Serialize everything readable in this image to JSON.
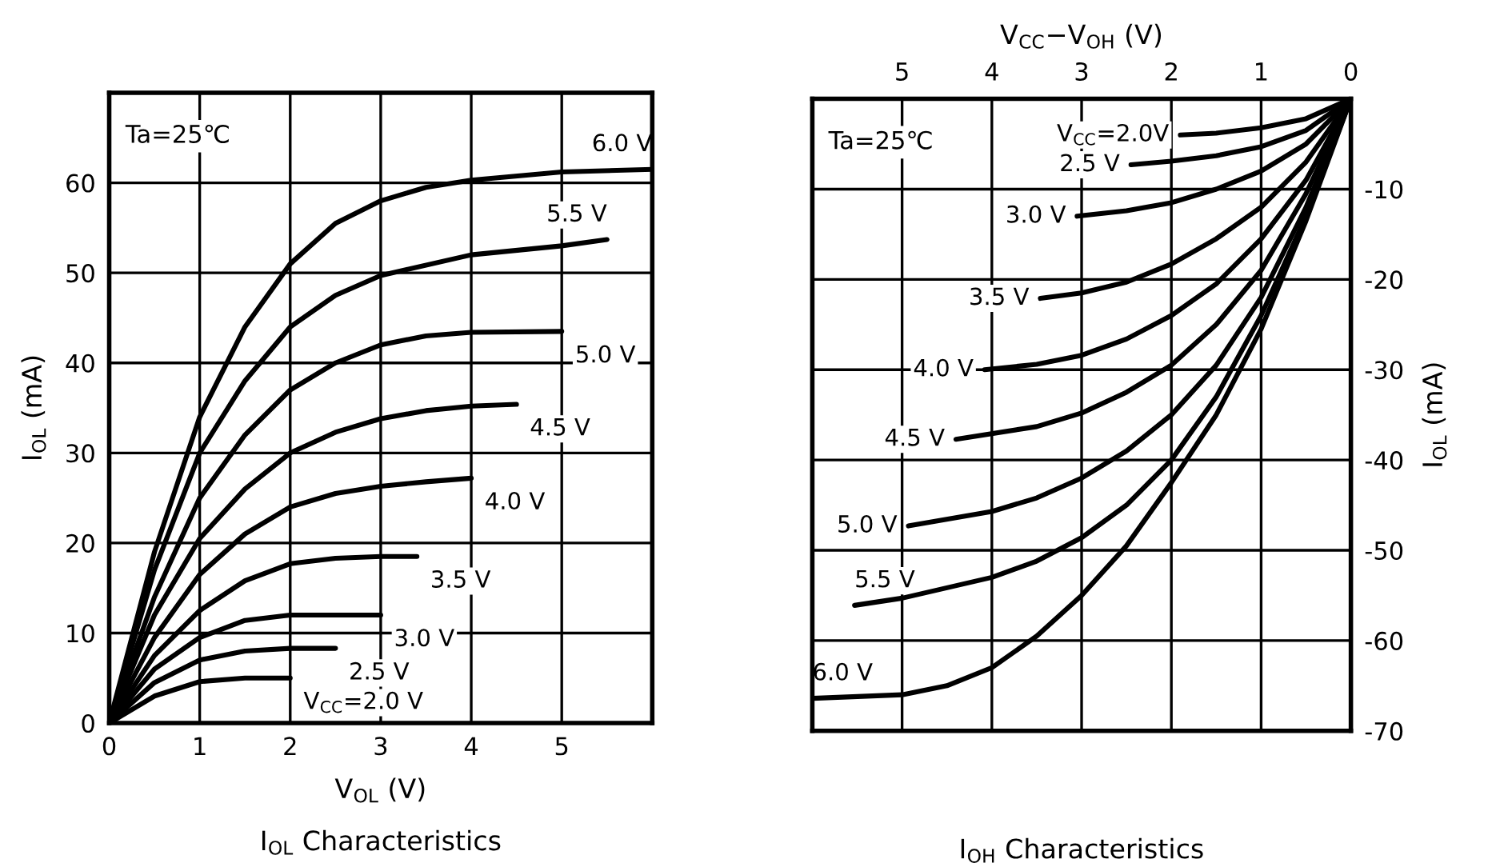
{
  "chart_data": [
    {
      "type": "line",
      "title": "I$_{OL}$ Characteristics",
      "xlabel": "V$_{OL}$ (V)",
      "ylabel": "I$_{OL}$ (mA)",
      "annotations": [
        "Ta=25℃"
      ],
      "xlim": [
        0,
        6
      ],
      "xticks": [
        0,
        1,
        2,
        3,
        4,
        5
      ],
      "ylim": [
        0,
        70
      ],
      "yticks": [
        0,
        10,
        20,
        30,
        40,
        50,
        60
      ],
      "grid": true,
      "legend": false,
      "marker": "none",
      "line_style": "solid",
      "series": [
        {
          "name": "6.0 V",
          "color": "#000000",
          "x": [
            0,
            0.5,
            1,
            1.5,
            2,
            2.5,
            3,
            3.5,
            4,
            5,
            6
          ],
          "values": [
            0,
            19,
            34,
            44,
            51,
            55.5,
            58,
            59.5,
            60.3,
            61.2,
            61.5
          ]
        },
        {
          "name": "5.5 V",
          "color": "#000000",
          "x": [
            0,
            0.5,
            1,
            1.5,
            2,
            2.5,
            3,
            4,
            5,
            5.5
          ],
          "values": [
            0,
            17,
            30,
            38,
            44,
            47.5,
            49.7,
            52,
            53,
            53.7
          ]
        },
        {
          "name": "5.0 V",
          "color": "#000000",
          "x": [
            0,
            0.5,
            1,
            1.5,
            2,
            2.5,
            3,
            3.5,
            4,
            5
          ],
          "values": [
            0,
            14,
            25,
            32,
            37,
            40,
            42,
            43,
            43.4,
            43.5
          ]
        },
        {
          "name": "4.5 V",
          "color": "#000000",
          "x": [
            0,
            0.5,
            1,
            1.5,
            2,
            2.5,
            3,
            3.5,
            4,
            4.5
          ],
          "values": [
            0,
            12,
            20.5,
            26,
            30,
            32.3,
            33.8,
            34.7,
            35.2,
            35.4
          ]
        },
        {
          "name": "4.0 V",
          "color": "#000000",
          "x": [
            0,
            0.5,
            1,
            1.5,
            2,
            2.5,
            3,
            3.5,
            4
          ],
          "values": [
            0,
            9.5,
            16.5,
            21,
            24,
            25.5,
            26.3,
            26.8,
            27.2
          ]
        },
        {
          "name": "3.5 V",
          "color": "#000000",
          "x": [
            0,
            0.5,
            1,
            1.5,
            2,
            2.5,
            3,
            3.4
          ],
          "values": [
            0,
            7.5,
            12.5,
            15.8,
            17.7,
            18.3,
            18.5,
            18.5
          ]
        },
        {
          "name": "3.0 V",
          "color": "#000000",
          "x": [
            0,
            0.5,
            1,
            1.5,
            2,
            3
          ],
          "values": [
            0,
            6,
            9.5,
            11.4,
            12,
            12
          ]
        },
        {
          "name": "2.5 V",
          "color": "#000000",
          "x": [
            0,
            0.5,
            1,
            1.5,
            2,
            2.5
          ],
          "values": [
            0,
            4.5,
            7,
            8,
            8.3,
            8.3
          ]
        },
        {
          "name": "V$_{CC}$=2.0 V",
          "color": "#000000",
          "x": [
            0,
            0.5,
            1,
            1.5,
            2
          ],
          "values": [
            0,
            3,
            4.6,
            5,
            5
          ]
        }
      ]
    },
    {
      "type": "line",
      "title": "I$_{OH}$ Characteristics",
      "xlabel": "V$_{CC}$−V$_{OH}$ (V)",
      "ylabel": "I$_{OL}$ (mA)",
      "annotations": [
        "Ta=25℃"
      ],
      "xlim": [
        6,
        0
      ],
      "xticks": [
        5,
        4,
        3,
        2,
        1,
        0
      ],
      "ylim": [
        -70,
        0
      ],
      "yticks": [
        -10,
        -20,
        -30,
        -40,
        -50,
        -60,
        -70
      ],
      "grid": true,
      "legend": false,
      "marker": "none",
      "line_style": "solid",
      "series": [
        {
          "name": "V$_{CC}$=2.0V",
          "color": "#000000",
          "x": [
            0,
            0.5,
            1,
            1.5,
            1.9
          ],
          "values": [
            0,
            -2.2,
            -3.2,
            -3.8,
            -4.0
          ]
        },
        {
          "name": "2.5 V",
          "color": "#000000",
          "x": [
            0,
            0.5,
            1,
            1.5,
            2,
            2.45
          ],
          "values": [
            0,
            -3.5,
            -5.3,
            -6.3,
            -6.9,
            -7.3
          ]
        },
        {
          "name": "3.0 V",
          "color": "#000000",
          "x": [
            0,
            0.5,
            1,
            1.5,
            2,
            2.5,
            3.05
          ],
          "values": [
            0,
            -5,
            -8,
            -10,
            -11.5,
            -12.4,
            -13
          ]
        },
        {
          "name": "3.5 V",
          "color": "#000000",
          "x": [
            0,
            0.5,
            1,
            1.5,
            2,
            2.5,
            3,
            3.46
          ],
          "values": [
            0,
            -7,
            -12,
            -15.5,
            -18.3,
            -20.3,
            -21.5,
            -22.1
          ]
        },
        {
          "name": "4.0 V",
          "color": "#000000",
          "x": [
            0,
            0.5,
            1,
            1.5,
            2,
            2.5,
            3,
            3.5,
            4.08
          ],
          "values": [
            0,
            -9,
            -15.5,
            -20.5,
            -24,
            -26.6,
            -28.4,
            -29.4,
            -30
          ]
        },
        {
          "name": "4.5 V",
          "color": "#000000",
          "x": [
            0,
            0.5,
            1,
            1.5,
            2,
            2.5,
            3,
            3.5,
            4.4
          ],
          "values": [
            0,
            -10.5,
            -19,
            -25,
            -29.5,
            -32.5,
            -34.8,
            -36.3,
            -37.7
          ]
        },
        {
          "name": "5.0 V",
          "color": "#000000",
          "x": [
            0,
            0.5,
            1,
            1.5,
            2,
            2.5,
            3,
            3.5,
            4,
            4.93
          ],
          "values": [
            0,
            -12,
            -22,
            -29.5,
            -35,
            -39,
            -42,
            -44.2,
            -45.7,
            -47.3
          ]
        },
        {
          "name": "5.5 V",
          "color": "#000000",
          "x": [
            0,
            0.5,
            1,
            1.5,
            2,
            2.5,
            3,
            3.5,
            4,
            5,
            5.53
          ],
          "values": [
            0,
            -13,
            -24,
            -33,
            -40,
            -45,
            -48.6,
            -51.2,
            -53,
            -55.3,
            -56.1
          ]
        },
        {
          "name": "6.0 V",
          "color": "#000000",
          "x": [
            0,
            0.5,
            1,
            1.5,
            2,
            2.5,
            3,
            3.5,
            4,
            4.5,
            5,
            6
          ],
          "values": [
            0,
            -13.5,
            -25.5,
            -35,
            -42.5,
            -49.5,
            -55,
            -59.5,
            -63,
            -65,
            -66,
            -66.4
          ]
        }
      ]
    }
  ]
}
